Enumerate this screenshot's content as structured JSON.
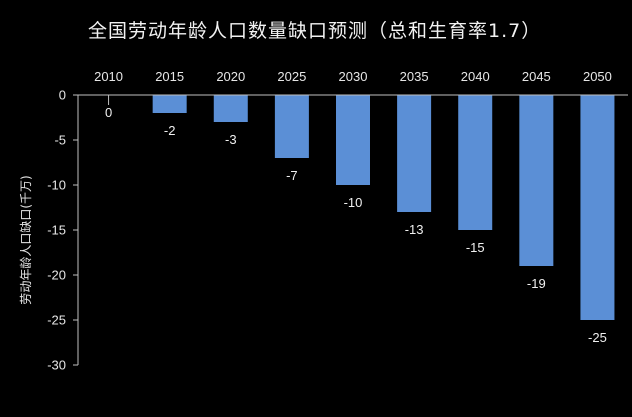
{
  "chart_data": {
    "type": "bar",
    "title": "全国劳动年龄人口数量缺口预测（总和生育率1.7）",
    "xlabel": "",
    "ylabel": "劳动年龄人口缺口(千万)",
    "categories": [
      "2010",
      "2015",
      "2020",
      "2025",
      "2030",
      "2035",
      "2040",
      "2045",
      "2050"
    ],
    "values": [
      0,
      -2,
      -3,
      -7,
      -10,
      -13,
      -15,
      -19,
      -25
    ],
    "ylim": [
      -30,
      0
    ],
    "yticks": [
      0,
      -5,
      -10,
      -15,
      -20,
      -25,
      -30
    ],
    "x_axis_position": "top",
    "grid": false,
    "bar_color": "#5b8fd6",
    "axis_color": "#bfbfbf"
  }
}
